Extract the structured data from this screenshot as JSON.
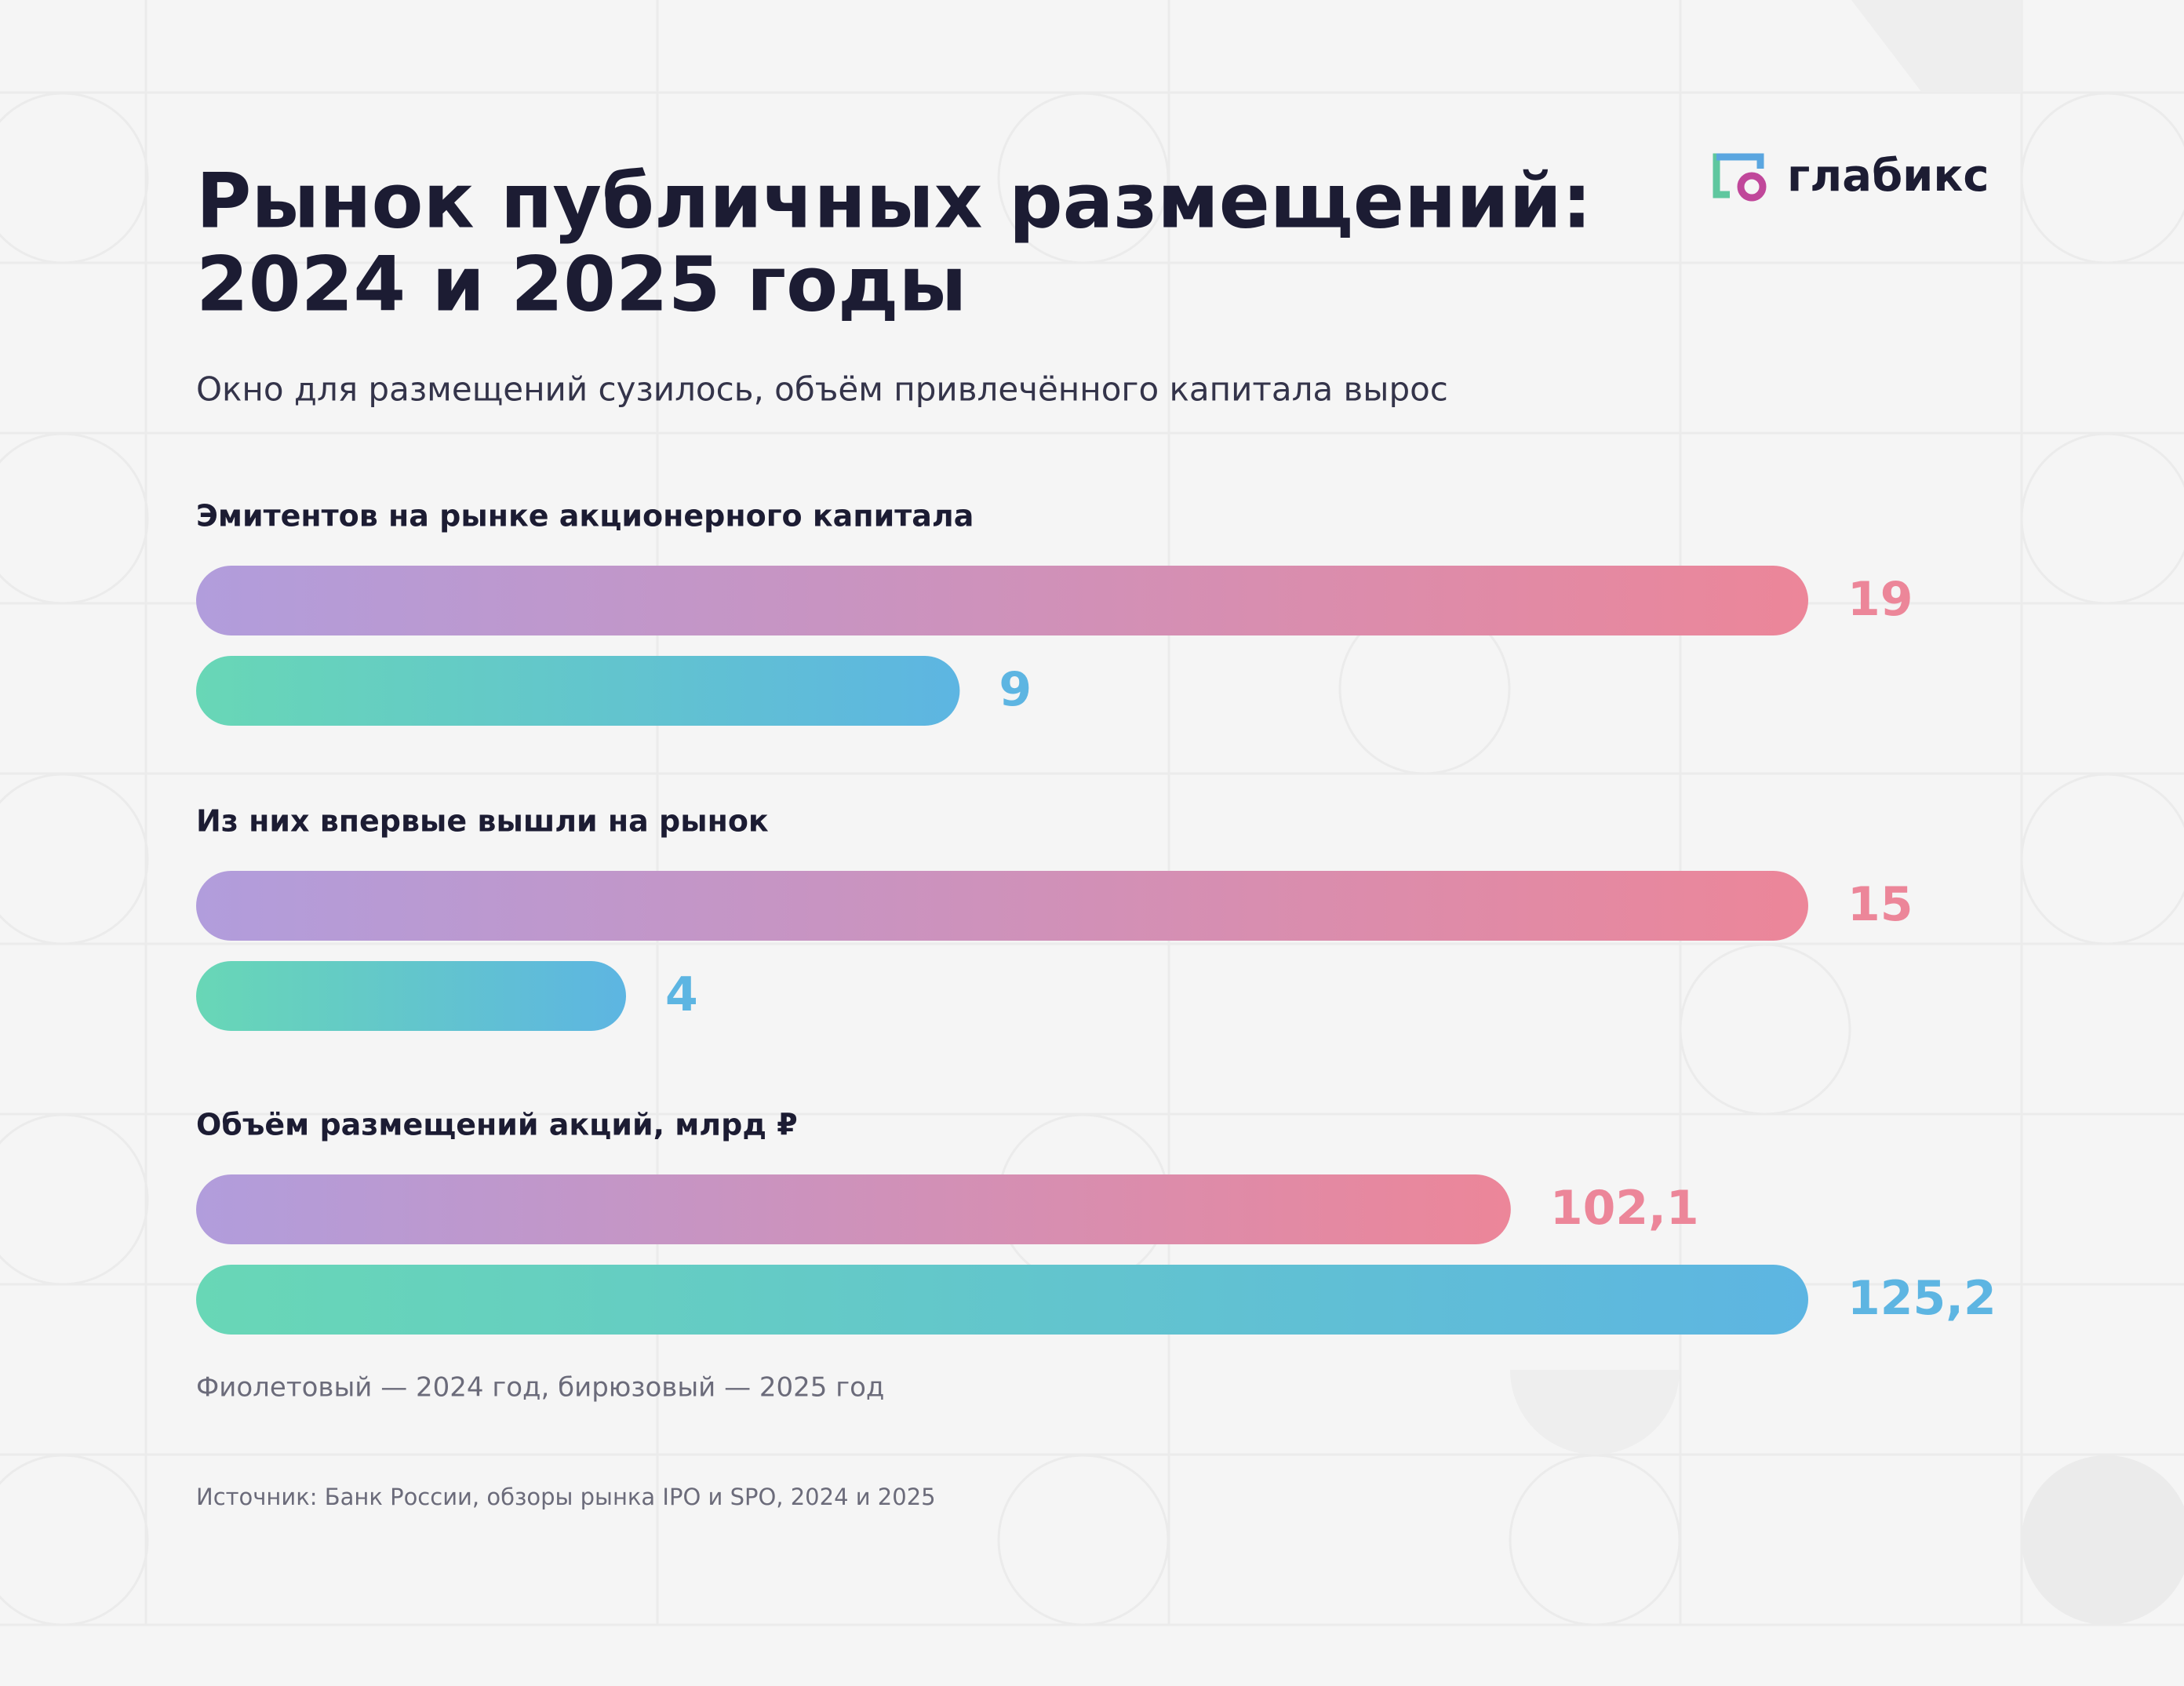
{
  "header": {
    "title": [
      "Рынок публичных размещений:",
      "2024 и 2025 годы"
    ],
    "subtitle": "Окно для размещений сузилось, объём привлечённого капитала вырос"
  },
  "logo": "глабикс",
  "chart_data": [
    {
      "type": "bar",
      "orientation": "horizontal",
      "title": "Эмитентов на рынке акционерного капитала",
      "values": [
        19,
        9
      ],
      "colors": [
        [
          "#b19ddc",
          "#ec8699"
        ],
        [
          "#68d7b6",
          "#5db5e2"
        ]
      ]
    },
    {
      "type": "bar",
      "orientation": "horizontal",
      "title": "Из них впервые вышли на рынок",
      "values": [
        15,
        4
      ],
      "colors": [
        [
          "#b19ddc",
          "#ec8699"
        ],
        [
          "#68d7b6",
          "#5db5e2"
        ]
      ]
    },
    {
      "type": "bar",
      "orientation": "horizontal",
      "title": "Объём размещений акций, млрд ₽",
      "values": [
        102.1,
        125.2
      ],
      "value_labels": [
        "102,1",
        "125,2"
      ],
      "colors": [
        [
          "#b19ddc",
          "#ec8699"
        ],
        [
          "#68d7b6",
          "#5db5e2"
        ]
      ]
    }
  ],
  "note": "Фиолетовый — 2024 год, бирюзовый — 2025 год",
  "source": "Источник: Банк России, обзоры рынка IPO и SPO, 2024 и 2025"
}
